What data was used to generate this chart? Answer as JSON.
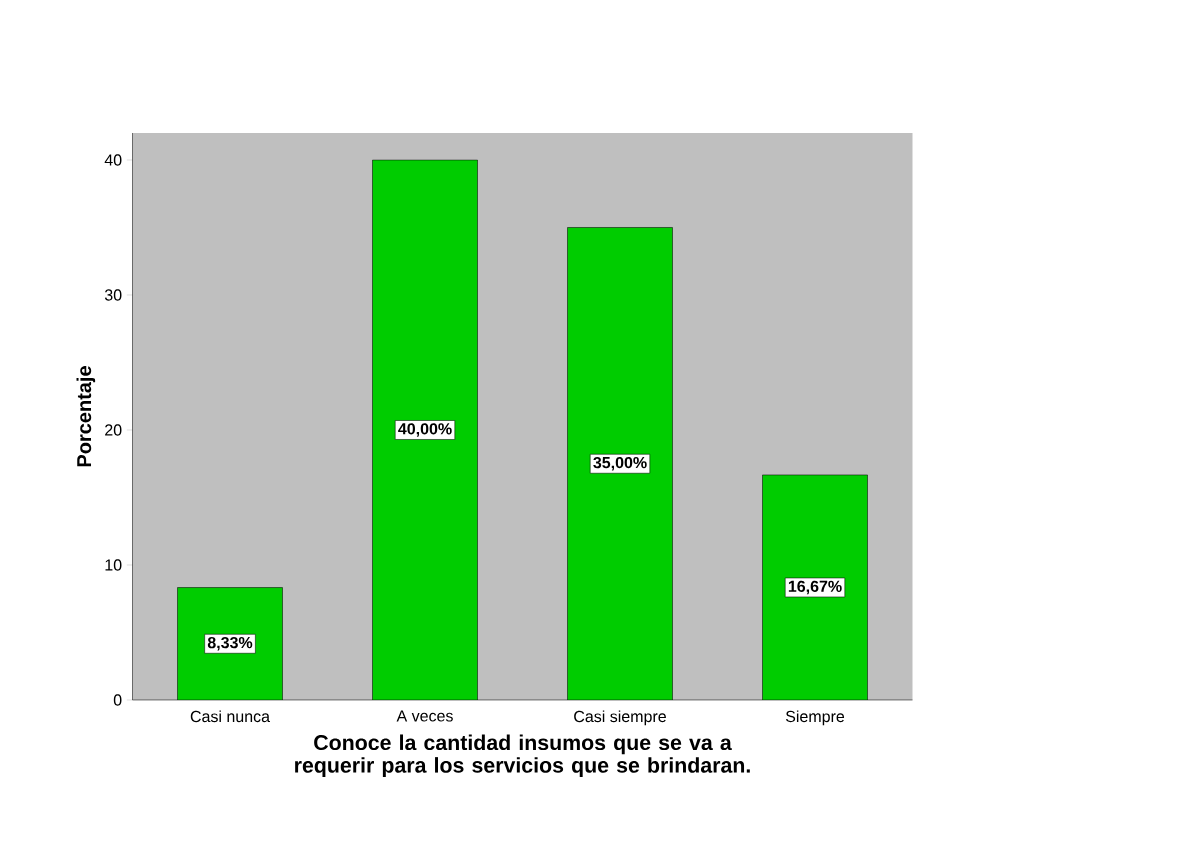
{
  "chart_data": {
    "type": "bar",
    "xlabel": "Conoce la cantidad insumos que se va a requerir para los servicios que se brindaran.",
    "ylabel": "Porcentaje",
    "categories": [
      "Casi nunca",
      "A veces",
      "Casi siempre",
      "Siempre"
    ],
    "values": [
      8.33,
      40.0,
      35.0,
      16.67
    ],
    "value_labels": [
      "8,33%",
      "40,00%",
      "35,00%",
      "16,67%"
    ],
    "color": "#00cc00",
    "ylim": [
      0,
      42
    ],
    "yticks": [
      0,
      10,
      20,
      30,
      40
    ],
    "grid": false
  }
}
